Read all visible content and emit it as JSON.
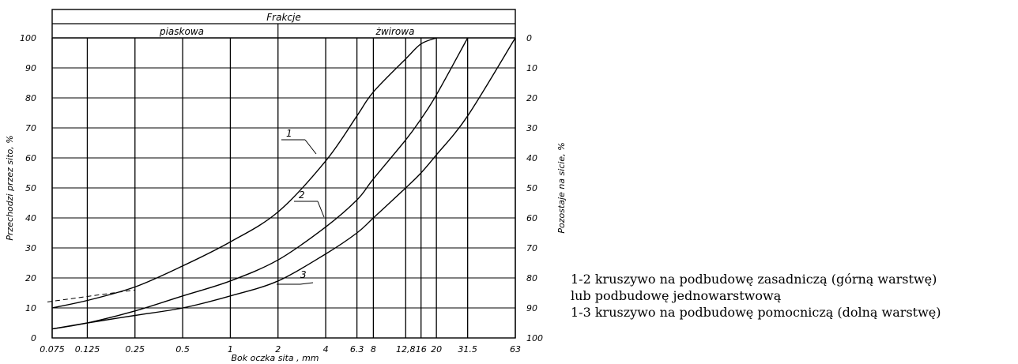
{
  "chart_data": {
    "type": "line",
    "title": "",
    "header_title": "Frakcje",
    "fractions": [
      {
        "name": "piaskowa",
        "x_from": 0.075,
        "x_to": 2
      },
      {
        "name": "żwirowa",
        "x_from": 2,
        "x_to": 63
      }
    ],
    "xlabel": "Bok oczka sita , mm",
    "ylabel": "Przechodzi przez sito, %",
    "ylabel_right": "Pozostaje na sicie, %",
    "x_scale": "log",
    "xlim": [
      0.075,
      63
    ],
    "ylim": [
      0,
      100
    ],
    "x_ticks": [
      {
        "value": 0.075,
        "label": "0.075"
      },
      {
        "value": 0.125,
        "label": "0.125"
      },
      {
        "value": 0.25,
        "label": "0.25"
      },
      {
        "value": 0.5,
        "label": "0.5"
      },
      {
        "value": 1,
        "label": "1"
      },
      {
        "value": 2,
        "label": "2"
      },
      {
        "value": 4,
        "label": "4"
      },
      {
        "value": 6.3,
        "label": "6.3"
      },
      {
        "value": 8,
        "label": "8"
      },
      {
        "value": 12.8,
        "label": "12,8"
      },
      {
        "value": 16,
        "label": "16"
      },
      {
        "value": 20,
        "label": "20"
      },
      {
        "value": 31.5,
        "label": "31.5"
      },
      {
        "value": 63,
        "label": "63"
      }
    ],
    "y_ticks_left": [
      "0",
      "10",
      "20",
      "30",
      "40",
      "50",
      "60",
      "70",
      "80",
      "90",
      "100"
    ],
    "y_ticks_right": [
      "100",
      "90",
      "80",
      "70",
      "60",
      "50",
      "40",
      "30",
      "20",
      "10",
      "0"
    ],
    "grid": true,
    "series": [
      {
        "label": "1",
        "x": [
          0.075,
          0.125,
          0.25,
          0.5,
          1,
          2,
          4,
          6.3,
          8,
          12.8,
          16,
          20
        ],
        "y": [
          10,
          12.5,
          17,
          24,
          32,
          42,
          59,
          74,
          82,
          93,
          98,
          100
        ]
      },
      {
        "label": "2",
        "x": [
          0.075,
          0.125,
          0.25,
          0.5,
          1,
          2,
          4,
          6.3,
          8,
          12.8,
          16,
          20,
          31.5
        ],
        "y": [
          3,
          5,
          9,
          14,
          19,
          26,
          37,
          46,
          53,
          66,
          73,
          81,
          100
        ]
      },
      {
        "label": "3",
        "x": [
          0.075,
          0.125,
          0.25,
          0.5,
          1,
          2,
          4,
          6.3,
          8,
          12.8,
          16,
          20,
          31.5,
          63
        ],
        "y": [
          3,
          5,
          7.5,
          10,
          14,
          19,
          28,
          35,
          40,
          50,
          55,
          61,
          74,
          100
        ]
      }
    ],
    "dashed_extension": {
      "x": [
        0.075,
        0.25
      ],
      "y": [
        12,
        16
      ]
    }
  },
  "legend": [
    "1-2  kruszywo na podbudowę zasadniczą (górną warstwę)",
    "lub podbudowę jednowarstwową",
    "1-3  kruszywo na podbudowę pomocniczą (dolną warstwę)"
  ]
}
